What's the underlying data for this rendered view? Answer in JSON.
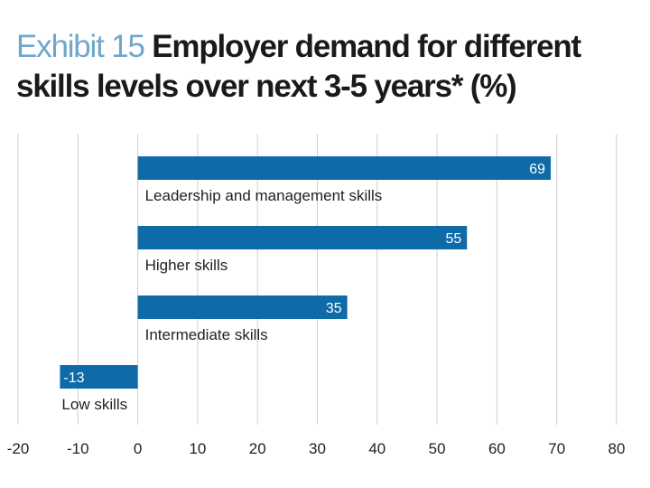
{
  "title": {
    "prefix": "Exhibit 15",
    "text": "Employer demand for different skills levels over next 3-5 years* (%)"
  },
  "colors": {
    "bar": "#0f6aa8",
    "exhibit": "#6fa6c9",
    "grid": "#cfcfcf"
  },
  "chart_data": {
    "type": "bar",
    "orientation": "horizontal",
    "categories": [
      "Leadership and management skills",
      "Higher skills",
      "Intermediate skills",
      "Low skills"
    ],
    "values": [
      69,
      55,
      35,
      -13
    ],
    "value_labels": [
      "69",
      "55",
      "35",
      "-13"
    ],
    "xlim": [
      -20,
      80
    ],
    "xticks": [
      -20,
      -10,
      0,
      10,
      20,
      30,
      40,
      50,
      60,
      70,
      80
    ],
    "grid": "vertical"
  }
}
